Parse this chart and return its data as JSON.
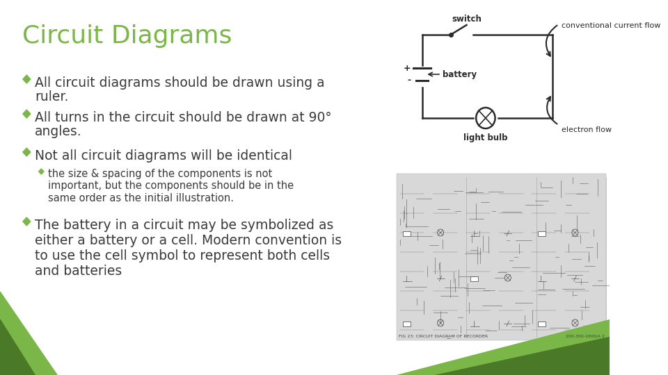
{
  "title": "Circuit Diagrams",
  "title_color": "#7ab648",
  "title_fontsize": 26,
  "bg_color": "#ffffff",
  "bullet_color": "#7ab648",
  "text_color": "#3a3a3a",
  "bullet1_line1": "All circuit diagrams should be drawn using a",
  "bullet1_line2": "ruler.",
  "bullet2_line1": "All turns in the circuit should be drawn at 90°",
  "bullet2_line2": "angles.",
  "bullet3": "Not all circuit diagrams will be identical",
  "sub_bullet": "the size & spacing of the components is not\nimportant, but the components should be in the\nsame order as the initial illustration.",
  "bullet4": "The battery in a circuit may be symbolized as\neither a battery or a cell. Modern convention is\nto use the cell symbol to represent both cells\nand batteries",
  "main_fontsize": 13.5,
  "sub_fontsize": 10.5,
  "loop_color": "#2a2a2a",
  "label_color": "#2a2a2a",
  "schematic_bg": "#e8e8e8",
  "schematic_edge": "#888888"
}
